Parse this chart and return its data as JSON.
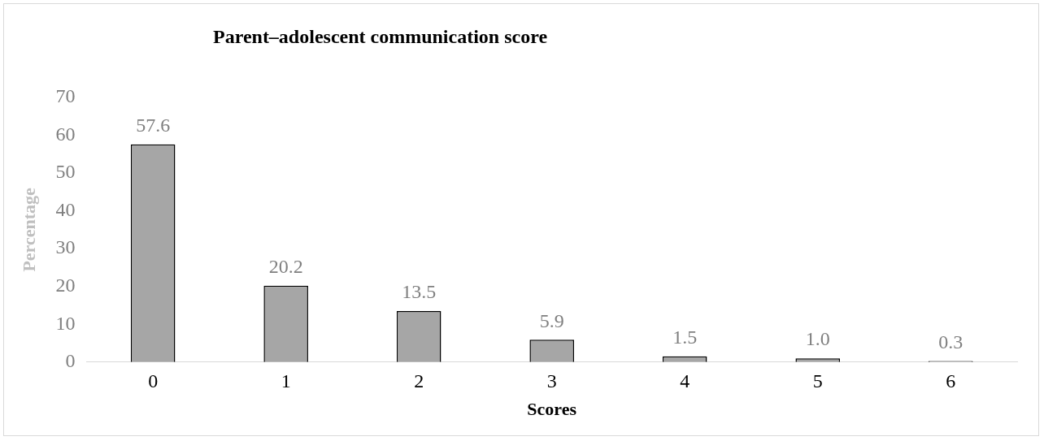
{
  "chart_data": {
    "type": "bar",
    "title": "Parent–adolescent communication score",
    "xlabel": "Scores",
    "ylabel": "Percentage",
    "categories": [
      "0",
      "1",
      "2",
      "3",
      "4",
      "5",
      "6"
    ],
    "values": [
      57.6,
      20.2,
      13.5,
      5.9,
      1.5,
      1.0,
      0.3
    ],
    "value_labels": [
      "57.6",
      "20.2",
      "13.5",
      "5.9",
      "1.5",
      "1.0",
      "0.3"
    ],
    "color": "#a6a6a6",
    "ylim": [
      0,
      70
    ],
    "yticks": [
      0,
      10,
      20,
      30,
      40,
      50,
      60,
      70
    ],
    "grid": false,
    "legend": false
  }
}
